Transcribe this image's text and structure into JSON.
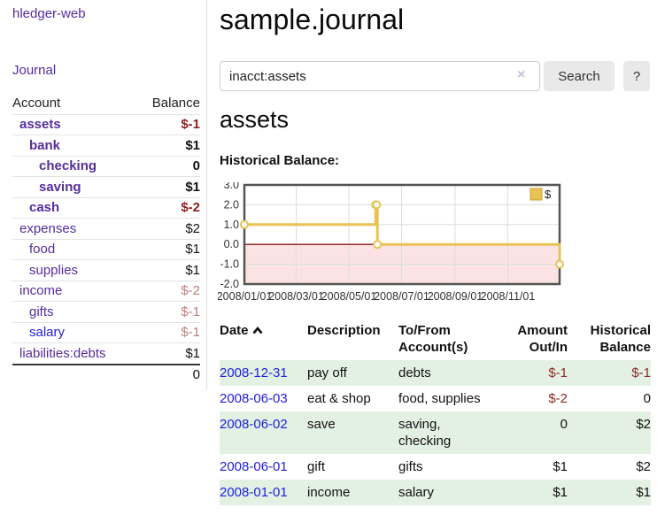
{
  "app": {
    "brand": "hledger-web"
  },
  "sidebar": {
    "nav_journal": "Journal",
    "accounts": {
      "col_account": "Account",
      "col_balance": "Balance",
      "rows": [
        {
          "name": "assets",
          "balance": "$-1"
        },
        {
          "name": "bank",
          "balance": "$1"
        },
        {
          "name": "checking",
          "balance": "0"
        },
        {
          "name": "saving",
          "balance": "$1"
        },
        {
          "name": "cash",
          "balance": "$-2"
        },
        {
          "name": "expenses",
          "balance": "$2"
        },
        {
          "name": "food",
          "balance": "$1"
        },
        {
          "name": "supplies",
          "balance": "$1"
        },
        {
          "name": "income",
          "balance": "$-2"
        },
        {
          "name": "gifts",
          "balance": "$-1"
        },
        {
          "name": "salary",
          "balance": "$-1"
        },
        {
          "name": "liabilities:debts",
          "balance": "$1"
        }
      ],
      "total": "0"
    }
  },
  "header": {
    "title": "sample.journal"
  },
  "search": {
    "value": "inacct:assets",
    "clear_icon": "×",
    "button": "Search",
    "help": "?"
  },
  "account_page": {
    "heading": "assets",
    "chart_title": "Historical Balance:"
  },
  "chart_data": {
    "type": "line",
    "step": true,
    "title": "Historical Balance",
    "series": [
      {
        "name": "$",
        "color": "#e8c255",
        "points": [
          [
            "2008-01-01",
            1
          ],
          [
            "2008-06-01",
            2
          ],
          [
            "2008-06-02",
            2
          ],
          [
            "2008-06-03",
            0
          ],
          [
            "2008-12-31",
            -1
          ]
        ]
      }
    ],
    "ylim": [
      -2,
      3
    ],
    "y_ticks": [
      3,
      2,
      1,
      0,
      -1,
      -2
    ],
    "x_tick_labels": [
      "2008/01/01",
      "2008/03/01",
      "2008/05/01",
      "2008/07/01",
      "2008/09/01",
      "2008/11/01"
    ],
    "x_tick_days": [
      0,
      60,
      121,
      182,
      244,
      305
    ],
    "xlim_days": [
      0,
      365
    ],
    "grid": true,
    "legend": {
      "label": "$",
      "position": "top-right"
    },
    "negative_region_color": "#fbe3e3",
    "zero_line_color": "#8b1a1a"
  },
  "register": {
    "headers": {
      "date": "Date",
      "description": "Description",
      "accounts_l1": "To/From",
      "accounts_l2": "Account(s)",
      "amount_l1": "Amount",
      "amount_l2": "Out/In",
      "balance_l1": "Historical",
      "balance_l2": "Balance"
    },
    "rows": [
      {
        "date": "2008-12-31",
        "description": "pay off",
        "accounts": "debts",
        "amount": "$-1",
        "balance": "$-1"
      },
      {
        "date": "2008-06-03",
        "description": "eat & shop",
        "accounts": "food, supplies",
        "amount": "$-2",
        "balance": "0"
      },
      {
        "date": "2008-06-02",
        "description": "save",
        "accounts": "saving, checking",
        "amount": "0",
        "balance": "$2"
      },
      {
        "date": "2008-06-01",
        "description": "gift",
        "accounts": "gifts",
        "amount": "$1",
        "balance": "$2"
      },
      {
        "date": "2008-01-01",
        "description": "income",
        "accounts": "salary",
        "amount": "$1",
        "balance": "$1"
      }
    ]
  },
  "colors": {
    "link_purple": "#552d9e",
    "link_blue": "#2020e0",
    "negative_strong": "#8f1d1d",
    "negative_muted": "#c17d7d",
    "row_stripe_green": "#e3f1e3",
    "chart_line_gold": "#e8c255",
    "chart_negative_pink": "#fbe3e3",
    "chart_zero_line": "#8b1a1a"
  }
}
